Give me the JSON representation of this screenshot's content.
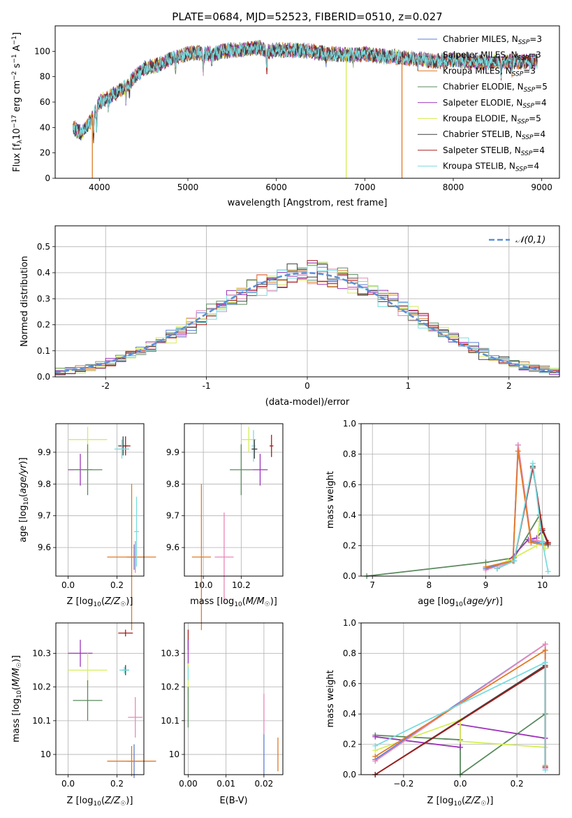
{
  "figure_title": "PLATE=0684, MJD=52523, FIBERID=0510, z=0.027",
  "colors": {
    "Chabrier MILES": "#5b7fd6",
    "Salpeter MILES": "#e887b8",
    "Kroupa MILES": "#e07a25",
    "Chabrier ELODIE": "#5a8a5e",
    "Salpeter ELODIE": "#9b34b8",
    "Kroupa ELODIE": "#d4ee58",
    "Chabrier STELIB": "#404040",
    "Salpeter STELIB": "#a61c1c",
    "Kroupa STELIB": "#78dce0"
  },
  "chart_data": [
    {
      "id": "spectrum",
      "type": "line",
      "title": "PLATE=0684, MJD=52523, FIBERID=0510, z=0.027",
      "xlabel": "wavelength [Angstrom, rest frame]",
      "ylabel": "Flux [f_λ 10^-17 erg cm^-2 s^-1 A^-1]",
      "xlim": [
        3500,
        9200
      ],
      "ylim": [
        0,
        120
      ],
      "xticks": [
        4000,
        5000,
        6000,
        7000,
        8000,
        9000
      ],
      "yticks": [
        0,
        20,
        40,
        60,
        80,
        100
      ],
      "legend_position": "top-right",
      "legend": [
        {
          "name": "Chabrier MILES",
          "suffix": "3"
        },
        {
          "name": "Salpeter MILES",
          "suffix": "3"
        },
        {
          "name": "Kroupa MILES",
          "suffix": "3"
        },
        {
          "name": "Chabrier ELODIE",
          "suffix": "5"
        },
        {
          "name": "Salpeter ELODIE",
          "suffix": "4"
        },
        {
          "name": "Kroupa ELODIE",
          "suffix": "5"
        },
        {
          "name": "Chabrier STELIB",
          "suffix": "4"
        },
        {
          "name": "Salpeter STELIB",
          "suffix": "4"
        },
        {
          "name": "Kroupa STELIB",
          "suffix": "4"
        }
      ],
      "continuum": [
        [
          3700,
          40
        ],
        [
          3800,
          35
        ],
        [
          3900,
          45
        ],
        [
          4000,
          60
        ],
        [
          4100,
          64
        ],
        [
          4200,
          68
        ],
        [
          4300,
          72
        ],
        [
          4400,
          80
        ],
        [
          4500,
          86
        ],
        [
          4600,
          88
        ],
        [
          4700,
          90
        ],
        [
          4800,
          94
        ],
        [
          4900,
          96
        ],
        [
          5000,
          98
        ],
        [
          5100,
          99
        ],
        [
          5200,
          98
        ],
        [
          5300,
          98
        ],
        [
          5400,
          100
        ],
        [
          5500,
          101
        ],
        [
          5600,
          101
        ],
        [
          5700,
          102
        ],
        [
          5800,
          103
        ],
        [
          5900,
          100
        ],
        [
          6000,
          101
        ],
        [
          6200,
          101
        ],
        [
          6400,
          100
        ],
        [
          6600,
          98
        ],
        [
          6800,
          97
        ],
        [
          7000,
          98
        ],
        [
          7200,
          96
        ],
        [
          7400,
          95
        ],
        [
          7600,
          94
        ],
        [
          7800,
          92
        ],
        [
          8000,
          93
        ],
        [
          8200,
          92
        ],
        [
          8400,
          91
        ],
        [
          8600,
          92
        ],
        [
          8800,
          92
        ],
        [
          8950,
          92
        ]
      ],
      "spikes": [
        {
          "x": 3920,
          "to": 0
        },
        {
          "x": 6790,
          "to": 0
        },
        {
          "x": 7420,
          "to": 0
        }
      ]
    },
    {
      "id": "residuals",
      "type": "step",
      "xlabel": "(data-model)/error",
      "ylabel": "Normed distribution",
      "xlim": [
        -2.5,
        2.5
      ],
      "ylim": [
        0,
        0.58
      ],
      "xticks": [
        -2,
        -1,
        0,
        1,
        2
      ],
      "yticks": [
        0.0,
        0.1,
        0.2,
        0.3,
        0.4,
        0.5
      ],
      "reference": {
        "label": "𝒩(0,1)",
        "mean": 0,
        "sigma": 1
      },
      "legend_position": "top-right",
      "bin_width": 0.1
    },
    {
      "id": "age-vs-Z",
      "type": "errorbar",
      "xlabel": "Z [log10(Z/Z☉)]",
      "ylabel": "age [log10(age/yr)]",
      "xlim": [
        -0.05,
        0.31
      ],
      "ylim": [
        9.51,
        9.99
      ],
      "xticks": [
        0.0,
        0.2
      ],
      "xticklabels": [
        "0.0",
        "0.2"
      ],
      "yticks": [
        9.6,
        9.7,
        9.8,
        9.9
      ],
      "points": [
        {
          "model": "Kroupa ELODIE",
          "x": 0.08,
          "xerr": 0.08,
          "y": 9.94,
          "yerr": 0.04
        },
        {
          "model": "Salpeter ELODIE",
          "x": 0.05,
          "xerr": 0.05,
          "y": 9.845,
          "yerr": 0.05
        },
        {
          "model": "Chabrier ELODIE",
          "x": 0.08,
          "xerr": 0.06,
          "y": 9.845,
          "yerr": 0.08
        },
        {
          "model": "Chabrier STELIB",
          "x": 0.225,
          "xerr": 0.02,
          "y": 9.92,
          "yerr": 0.03
        },
        {
          "model": "Salpeter STELIB",
          "x": 0.235,
          "xerr": 0.02,
          "y": 9.92,
          "yerr": 0.03
        },
        {
          "model": "Kroupa STELIB",
          "x": 0.22,
          "xerr": 0.03,
          "y": 9.91,
          "yerr": 0.03
        },
        {
          "model": "Chabrier MILES",
          "x": 0.27,
          "xerr": 0.03,
          "y": 9.57,
          "yerr": 0.04
        },
        {
          "model": "Salpeter MILES",
          "x": 0.275,
          "xerr": 0.03,
          "y": 9.57,
          "yerr": 0.05
        },
        {
          "model": "Kroupa MILES",
          "x": 0.26,
          "xerr": 0.1,
          "y": 9.57,
          "yerr": 0.23
        },
        {
          "model": "Kroupa STELIB",
          "x": 0.28,
          "xerr": 0.01,
          "y": 9.65,
          "yerr": 0.11
        }
      ]
    },
    {
      "id": "age-vs-mass",
      "type": "errorbar",
      "xlabel": "mass [log10(M/M☉)]",
      "xlim": [
        9.9,
        10.42
      ],
      "ylim": [
        9.51,
        9.99
      ],
      "xticks": [
        10.0,
        10.2
      ],
      "xticklabels": [
        "10.0",
        "10.2"
      ],
      "yticks": [
        9.6,
        9.7,
        9.8,
        9.9
      ],
      "points": [
        {
          "model": "Kroupa ELODIE",
          "x": 10.24,
          "xerr": 0.04,
          "y": 9.94,
          "yerr": 0.04
        },
        {
          "model": "Chabrier ELODIE",
          "x": 10.2,
          "xerr": 0.06,
          "y": 9.845,
          "yerr": 0.08
        },
        {
          "model": "Salpeter ELODIE",
          "x": 10.3,
          "xerr": 0.04,
          "y": 9.845,
          "yerr": 0.05
        },
        {
          "model": "Kroupa STELIB",
          "x": 10.265,
          "xerr": 0.01,
          "y": 9.92,
          "yerr": 0.05
        },
        {
          "model": "Chabrier STELIB",
          "x": 10.27,
          "xerr": 0.015,
          "y": 9.91,
          "yerr": 0.03
        },
        {
          "model": "Salpeter STELIB",
          "x": 10.36,
          "xerr": 0.01,
          "y": 9.92,
          "yerr": 0.035
        },
        {
          "model": "Kroupa MILES",
          "x": 9.99,
          "xerr": 0.05,
          "y": 9.57,
          "yerr": 0.23
        },
        {
          "model": "Salpeter MILES",
          "x": 10.11,
          "xerr": 0.05,
          "y": 9.57,
          "yerr": 0.14
        }
      ]
    },
    {
      "id": "mass-weight-vs-age",
      "type": "line",
      "xlabel": "age [log10(age/yr)]",
      "ylabel": "mass weight",
      "xlim": [
        6.8,
        10.3
      ],
      "ylim": [
        0,
        1.0
      ],
      "xticks": [
        7,
        8,
        9,
        10
      ],
      "yticks": [
        0.0,
        0.2,
        0.4,
        0.6,
        0.8,
        1.0
      ],
      "series": [
        {
          "model": "Chabrier ELODIE",
          "points": [
            [
              6.9,
              0.0
            ],
            [
              9.0,
              0.09
            ],
            [
              9.5,
              0.12
            ],
            [
              9.95,
              0.4
            ],
            [
              10.0,
              0.3
            ]
          ]
        },
        {
          "model": "Salpeter ELODIE",
          "points": [
            [
              9.0,
              0.05
            ],
            [
              9.4,
              0.1
            ],
            [
              9.75,
              0.24
            ],
            [
              9.9,
              0.25
            ],
            [
              10.0,
              0.3
            ]
          ]
        },
        {
          "model": "Kroupa ELODIE",
          "points": [
            [
              9.0,
              0.05
            ],
            [
              9.4,
              0.1
            ],
            [
              9.9,
              0.2
            ],
            [
              9.95,
              0.36
            ],
            [
              10.05,
              0.18
            ]
          ]
        },
        {
          "model": "Chabrier MILES",
          "points": [
            [
              9.0,
              0.05
            ],
            [
              9.48,
              0.1
            ],
            [
              9.57,
              0.86
            ],
            [
              9.8,
              0.23
            ],
            [
              10.1,
              0.21
            ]
          ]
        },
        {
          "model": "Salpeter MILES",
          "points": [
            [
              9.0,
              0.04
            ],
            [
              9.48,
              0.1
            ],
            [
              9.57,
              0.86
            ],
            [
              9.8,
              0.24
            ],
            [
              10.1,
              0.22
            ]
          ]
        },
        {
          "model": "Kroupa MILES",
          "points": [
            [
              9.0,
              0.06
            ],
            [
              9.48,
              0.1
            ],
            [
              9.57,
              0.82
            ],
            [
              9.8,
              0.22
            ],
            [
              10.1,
              0.2
            ]
          ]
        },
        {
          "model": "Chabrier STELIB",
          "points": [
            [
              9.2,
              0.05
            ],
            [
              9.5,
              0.1
            ],
            [
              9.83,
              0.72
            ],
            [
              10.0,
              0.3
            ],
            [
              10.1,
              0.21
            ]
          ]
        },
        {
          "model": "Salpeter STELIB",
          "points": [
            [
              9.2,
              0.05
            ],
            [
              9.5,
              0.1
            ],
            [
              9.83,
              0.71
            ],
            [
              10.0,
              0.31
            ],
            [
              10.1,
              0.22
            ]
          ]
        },
        {
          "model": "Kroupa STELIB",
          "points": [
            [
              9.2,
              0.05
            ],
            [
              9.5,
              0.1
            ],
            [
              9.83,
              0.74
            ],
            [
              10.0,
              0.22
            ],
            [
              10.1,
              0.03
            ]
          ]
        }
      ]
    },
    {
      "id": "mass-vs-Z",
      "type": "errorbar",
      "xlabel": "Z [log10(Z/Z☉)]",
      "ylabel": "mass [log10(M/M☉)]",
      "xlim": [
        -0.05,
        0.31
      ],
      "ylim": [
        9.94,
        10.39
      ],
      "xticks": [
        0.0,
        0.2
      ],
      "xticklabels": [
        "0.0",
        "0.2"
      ],
      "yticks": [
        10.0,
        10.1,
        10.2,
        10.3
      ],
      "points": [
        {
          "model": "Salpeter STELIB",
          "x": 0.235,
          "xerr": 0.03,
          "y": 10.36,
          "yerr": 0.01
        },
        {
          "model": "Salpeter ELODIE",
          "x": 0.05,
          "xerr": 0.05,
          "y": 10.3,
          "yerr": 0.04
        },
        {
          "model": "Kroupa ELODIE",
          "x": 0.08,
          "xerr": 0.08,
          "y": 10.25,
          "yerr": 0.05
        },
        {
          "model": "Chabrier STELIB",
          "x": 0.235,
          "xerr": 0.015,
          "y": 10.25,
          "yerr": 0.015
        },
        {
          "model": "Kroupa STELIB",
          "x": 0.23,
          "xerr": 0.02,
          "y": 10.25,
          "yerr": 0.01
        },
        {
          "model": "Chabrier ELODIE",
          "x": 0.08,
          "xerr": 0.06,
          "y": 10.16,
          "yerr": 0.06
        },
        {
          "model": "Salpeter MILES",
          "x": 0.275,
          "xerr": 0.03,
          "y": 10.11,
          "yerr": 0.06
        },
        {
          "model": "Chabrier MILES",
          "x": 0.27,
          "xerr": 0.03,
          "y": 9.98,
          "yerr": 0.05
        },
        {
          "model": "Kroupa MILES",
          "x": 0.26,
          "xerr": 0.1,
          "y": 9.98,
          "yerr": 0.045
        }
      ]
    },
    {
      "id": "mass-vs-EBV",
      "type": "errorbar",
      "xlabel": "E(B-V)",
      "xlim": [
        -0.001,
        0.025
      ],
      "ylim": [
        9.94,
        10.39
      ],
      "xticks": [
        0.0,
        0.01,
        0.02
      ],
      "xticklabels": [
        "0.00",
        "0.01",
        "0.02"
      ],
      "yticks": [
        10.0,
        10.1,
        10.2,
        10.3
      ],
      "points": [
        {
          "model": "Salpeter STELIB",
          "x": 0.0,
          "xerr": 0,
          "y": 10.34,
          "yerr": 0.03
        },
        {
          "model": "Salpeter ELODIE",
          "x": 0.0,
          "xerr": 0,
          "y": 10.3,
          "yerr": 0.04
        },
        {
          "model": "Kroupa ELODIE",
          "x": 0.0,
          "xerr": 0,
          "y": 10.22,
          "yerr": 0.05
        },
        {
          "model": "Kroupa STELIB",
          "x": 0.0,
          "xerr": 0,
          "y": 10.24,
          "yerr": 0.02
        },
        {
          "model": "Chabrier ELODIE",
          "x": 0.0,
          "xerr": 0,
          "y": 10.14,
          "yerr": 0.06
        },
        {
          "model": "Salpeter MILES",
          "x": 0.02,
          "xerr": 0,
          "y": 10.12,
          "yerr": 0.06
        },
        {
          "model": "Chabrier MILES",
          "x": 0.02,
          "xerr": 0,
          "y": 10.0,
          "yerr": 0.06
        },
        {
          "model": "Kroupa MILES",
          "x": 0.0237,
          "xerr": 0,
          "y": 10.0,
          "yerr": 0.05
        }
      ]
    },
    {
      "id": "mass-weight-vs-Z",
      "type": "line",
      "xlabel": "Z [log10(Z/Z☉)]",
      "ylabel": "mass weight",
      "xlim": [
        -0.35,
        0.35
      ],
      "ylim": [
        0,
        1.0
      ],
      "xticks": [
        -0.2,
        0.0,
        0.2
      ],
      "xticklabels": [
        "−0.2",
        "0.0",
        "0.2"
      ],
      "yticks": [
        0.0,
        0.2,
        0.4,
        0.6,
        0.8,
        1.0
      ],
      "series": [
        {
          "model": "Chabrier ELODIE",
          "points": [
            [
              -0.3,
              0.26
            ],
            [
              0.0,
              0.23
            ],
            [
              0.0,
              0.0
            ],
            [
              0.3,
              0.4
            ]
          ]
        },
        {
          "model": "Salpeter ELODIE",
          "points": [
            [
              -0.3,
              0.25
            ],
            [
              0.0,
              0.18
            ],
            [
              0.0,
              0.33
            ],
            [
              0.3,
              0.24
            ]
          ]
        },
        {
          "model": "Kroupa ELODIE",
          "points": [
            [
              -0.3,
              0.16
            ],
            [
              0.0,
              0.36
            ],
            [
              0.0,
              0.22
            ],
            [
              0.3,
              0.18
            ]
          ]
        },
        {
          "model": "Chabrier MILES",
          "points": [
            [
              -0.3,
              0.1
            ],
            [
              0.3,
              0.86
            ],
            [
              0.3,
              0.05
            ]
          ]
        },
        {
          "model": "Salpeter MILES",
          "points": [
            [
              -0.3,
              0.09
            ],
            [
              0.3,
              0.86
            ],
            [
              0.3,
              0.04
            ]
          ]
        },
        {
          "model": "Kroupa MILES",
          "points": [
            [
              -0.3,
              0.12
            ],
            [
              0.3,
              0.82
            ],
            [
              0.3,
              0.06
            ]
          ]
        },
        {
          "model": "Chabrier STELIB",
          "points": [
            [
              -0.3,
              0.0
            ],
            [
              0.3,
              0.72
            ],
            [
              0.3,
              0.05
            ]
          ]
        },
        {
          "model": "Salpeter STELIB",
          "points": [
            [
              -0.3,
              0.0
            ],
            [
              0.3,
              0.71
            ],
            [
              0.3,
              0.05
            ]
          ]
        },
        {
          "model": "Kroupa STELIB",
          "points": [
            [
              -0.3,
              0.19
            ],
            [
              0.3,
              0.74
            ],
            [
              0.3,
              0.03
            ]
          ]
        }
      ]
    }
  ]
}
